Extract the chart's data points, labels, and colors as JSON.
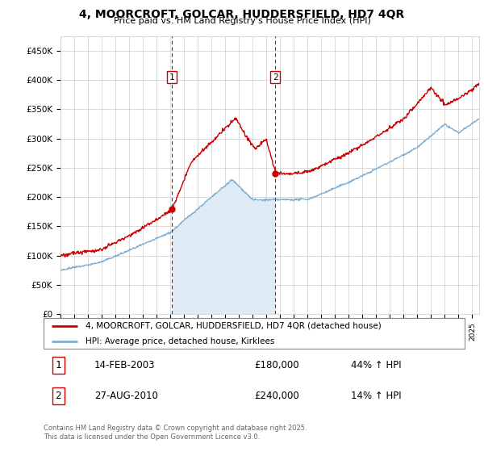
{
  "title": "4, MOORCROFT, GOLCAR, HUDDERSFIELD, HD7 4QR",
  "subtitle": "Price paid vs. HM Land Registry's House Price Index (HPI)",
  "legend_line1": "4, MOORCROFT, GOLCAR, HUDDERSFIELD, HD7 4QR (detached house)",
  "legend_line2": "HPI: Average price, detached house, Kirklees",
  "annotation1_label": "1",
  "annotation1_date": "14-FEB-2003",
  "annotation1_price": "£180,000",
  "annotation1_hpi": "44% ↑ HPI",
  "annotation2_label": "2",
  "annotation2_date": "27-AUG-2010",
  "annotation2_price": "£240,000",
  "annotation2_hpi": "14% ↑ HPI",
  "footer": "Contains HM Land Registry data © Crown copyright and database right 2025.\nThis data is licensed under the Open Government Licence v3.0.",
  "ylim": [
    0,
    475000
  ],
  "yticks": [
    0,
    50000,
    100000,
    150000,
    200000,
    250000,
    300000,
    350000,
    400000,
    450000
  ],
  "ytick_labels": [
    "£0",
    "£50K",
    "£100K",
    "£150K",
    "£200K",
    "£250K",
    "£300K",
    "£350K",
    "£400K",
    "£450K"
  ],
  "x_start_year": 1995,
  "x_end_year": 2025,
  "sale1_year": 2003.12,
  "sale1_price": 180000,
  "sale2_year": 2010.65,
  "sale2_price": 240000,
  "red_color": "#cc0000",
  "blue_color": "#7bafd4",
  "blue_fill": "#deeaf4",
  "vline_color": "#cc0000",
  "grid_color": "#cccccc",
  "bg_color": "#ffffff"
}
